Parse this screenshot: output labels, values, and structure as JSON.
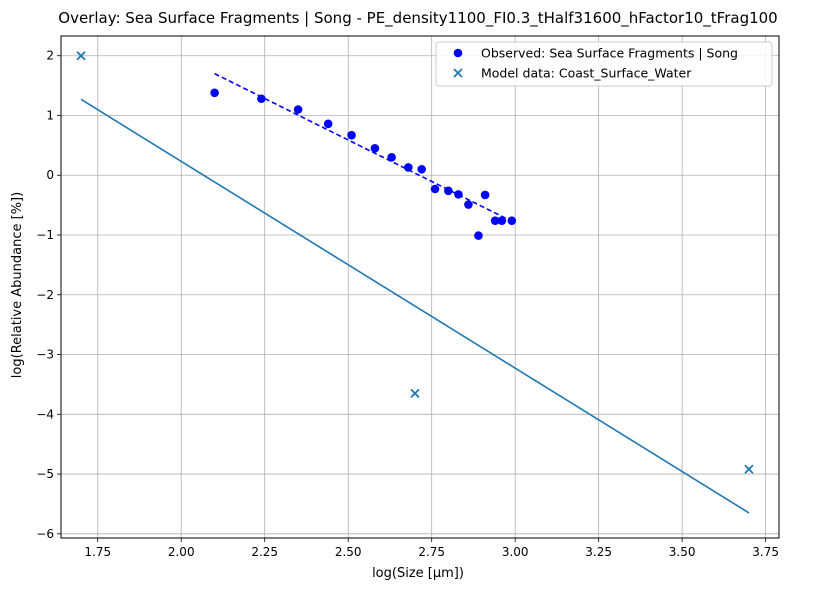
{
  "chart_data": {
    "type": "scatter",
    "title": "Overlay: Sea Surface Fragments | Song - PE_density1100_FI0.3_tHalf31600_hFactor10_tFrag100",
    "xlabel": "log(Size [μm])",
    "ylabel": "log(Relative Abundance [%])",
    "xlim": [
      1.64,
      3.79
    ],
    "ylim": [
      -6.07,
      2.33
    ],
    "x_ticks": [
      1.75,
      2.0,
      2.25,
      2.5,
      2.75,
      3.0,
      3.25,
      3.5,
      3.75
    ],
    "x_tick_labels": [
      "1.75",
      "2.00",
      "2.25",
      "2.50",
      "2.75",
      "3.00",
      "3.25",
      "3.50",
      "3.75"
    ],
    "y_ticks": [
      -6,
      -5,
      -4,
      -3,
      -2,
      -1,
      0,
      1,
      2
    ],
    "y_tick_labels": [
      "−6",
      "−5",
      "−4",
      "−3",
      "−2",
      "−1",
      "0",
      "1",
      "2"
    ],
    "grid": true,
    "legend_position": "top-right",
    "series": [
      {
        "name": "Observed: Sea Surface Fragments | Song",
        "kind": "scatter",
        "marker": "circle",
        "color": "#0000ff",
        "points": [
          [
            2.1,
            1.38
          ],
          [
            2.24,
            1.28
          ],
          [
            2.35,
            1.1
          ],
          [
            2.44,
            0.86
          ],
          [
            2.51,
            0.67
          ],
          [
            2.58,
            0.45
          ],
          [
            2.63,
            0.3
          ],
          [
            2.68,
            0.13
          ],
          [
            2.72,
            0.1
          ],
          [
            2.76,
            -0.23
          ],
          [
            2.8,
            -0.26
          ],
          [
            2.83,
            -0.32
          ],
          [
            2.86,
            -0.49
          ],
          [
            2.89,
            -1.01
          ],
          [
            2.91,
            -0.33
          ],
          [
            2.94,
            -0.76
          ],
          [
            2.96,
            -0.76
          ],
          [
            2.99,
            -0.76
          ]
        ]
      },
      {
        "name": "",
        "kind": "line",
        "style": "dashed",
        "color": "#0000ff",
        "points": [
          [
            2.1,
            1.7
          ],
          [
            2.99,
            -0.77
          ]
        ]
      },
      {
        "name": "Model data: Coast_Surface_Water",
        "kind": "scatter",
        "marker": "x",
        "color": "#1f77b4",
        "points": [
          [
            1.7,
            2.0
          ],
          [
            2.7,
            -3.65
          ],
          [
            3.7,
            -4.92
          ]
        ]
      },
      {
        "name": "",
        "kind": "line",
        "style": "solid",
        "color": "#1f77b4",
        "points": [
          [
            1.7,
            1.27
          ],
          [
            3.7,
            -5.65
          ]
        ]
      }
    ]
  }
}
